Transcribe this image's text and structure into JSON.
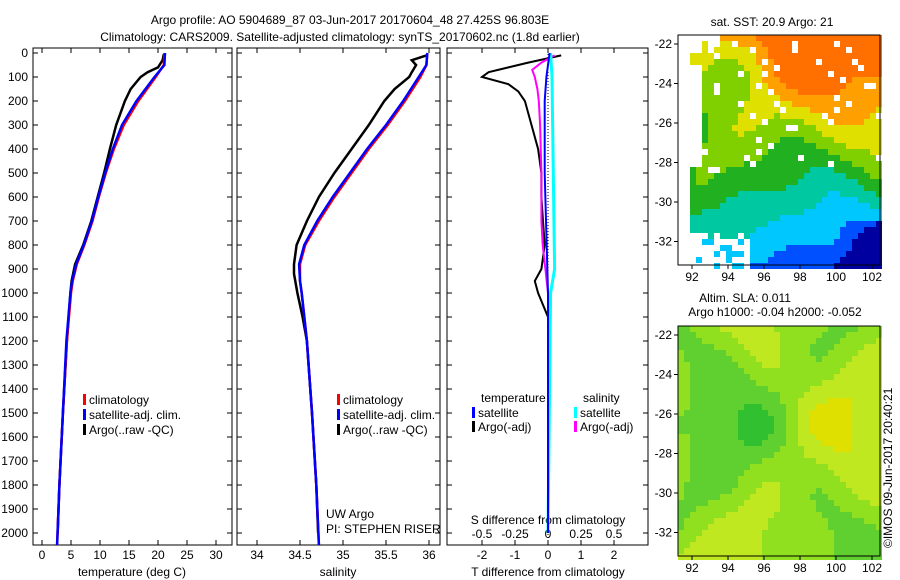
{
  "title_line1": "Argo profile: AO 5904689_87 03-Jun-2017 20170604_48 27.425S 96.803E",
  "title_line2": "Climatology: CARS2009. Satellite-adjusted climatology: synTS_20170602.nc (1.8d earlier)",
  "credit": "©IMOS 09-Jun-2017 20:40:21",
  "colors": {
    "climatology": "#ff0000",
    "satellite": "#0000ff",
    "argo": "#000000",
    "sal_satellite": "#00ffff",
    "sal_argo": "#ff00ff"
  },
  "chart_data": [
    {
      "type": "line",
      "name": "temperature-profile",
      "xlabel": "temperature (deg C)",
      "xlim": [
        -2,
        32
      ],
      "xticks": [
        "0",
        "5",
        "10",
        "15",
        "20",
        "25",
        "30"
      ],
      "ylim": [
        0,
        2050
      ],
      "yticks": [
        "0",
        "100",
        "200",
        "300",
        "400",
        "500",
        "600",
        "700",
        "800",
        "900",
        "1000",
        "1100",
        "1200",
        "1300",
        "1400",
        "1500",
        "1600",
        "1700",
        "1800",
        "1900",
        "2000"
      ],
      "legend": [
        "climatology",
        "satellite-adj. clim.",
        "Argo(..raw -QC)"
      ],
      "series": [
        {
          "name": "climatology",
          "depth": [
            0,
            50,
            100,
            200,
            300,
            400,
            500,
            600,
            700,
            800,
            880,
            950,
            1000,
            1200,
            1500,
            1800,
            2050
          ],
          "values": [
            21.1,
            21,
            19.6,
            16.6,
            14.1,
            12.4,
            11,
            9.8,
            8.7,
            7.3,
            6,
            5.3,
            5,
            4.3,
            3.6,
            3,
            2.6
          ]
        },
        {
          "name": "satellite-adj. clim.",
          "depth": [
            0,
            50,
            100,
            200,
            300,
            400,
            500,
            600,
            700,
            800,
            880,
            950,
            1000,
            1200,
            1500,
            1800,
            2050
          ],
          "values": [
            21.2,
            21.1,
            19.4,
            16.3,
            13.8,
            12.2,
            10.9,
            9.7,
            8.6,
            7.2,
            5.9,
            5.2,
            4.9,
            4.2,
            3.6,
            3,
            2.6
          ]
        },
        {
          "name": "Argo(..raw -QC)",
          "depth": [
            5,
            30,
            60,
            80,
            100,
            150,
            200,
            300,
            400,
            500,
            600,
            700,
            800,
            880,
            950,
            1000,
            1200,
            1500,
            1800,
            2000
          ],
          "values": [
            21,
            20.8,
            20,
            18.2,
            17,
            15.3,
            14.3,
            12.8,
            11.7,
            10.7,
            9.6,
            8.5,
            7.1,
            5.7,
            5.1,
            4.9,
            4.3,
            3.6,
            3,
            2.7
          ]
        }
      ]
    },
    {
      "type": "line",
      "name": "salinity-profile",
      "xlabel": "salinity",
      "xlim": [
        33.8,
        36.1
      ],
      "xticks": [
        "34",
        "34.5",
        "35",
        "35.5",
        "36"
      ],
      "legend": [
        "climatology",
        "satellite-adj. clim.",
        "Argo(..raw -QC)"
      ],
      "annotation": [
        "UW Argo",
        "PI: STEPHEN RISER"
      ],
      "series": [
        {
          "name": "climatology",
          "depth": [
            0,
            50,
            100,
            200,
            300,
            400,
            500,
            600,
            700,
            800,
            880,
            950,
            1000,
            1200,
            1500,
            1800,
            2050
          ],
          "values": [
            35.98,
            35.97,
            35.9,
            35.72,
            35.52,
            35.3,
            35.1,
            34.9,
            34.72,
            34.56,
            34.5,
            34.5,
            34.52,
            34.58,
            34.64,
            34.69,
            34.72
          ]
        },
        {
          "name": "satellite-adj. clim.",
          "depth": [
            0,
            50,
            100,
            200,
            300,
            400,
            500,
            600,
            700,
            800,
            880,
            950,
            1000,
            1200,
            1500,
            1800,
            2050
          ],
          "values": [
            35.98,
            35.97,
            35.88,
            35.7,
            35.5,
            35.28,
            35.08,
            34.88,
            34.7,
            34.55,
            34.49,
            34.5,
            34.52,
            34.58,
            34.64,
            34.69,
            34.72
          ]
        },
        {
          "name": "Argo(..raw -QC)",
          "depth": [
            10,
            30,
            50,
            80,
            100,
            150,
            200,
            300,
            400,
            500,
            600,
            700,
            800,
            880,
            920,
            1000,
            1100,
            1200,
            1500,
            1800,
            2000
          ],
          "values": [
            35.97,
            35.8,
            35.85,
            35.8,
            35.77,
            35.6,
            35.48,
            35.3,
            35.1,
            34.9,
            34.72,
            34.58,
            34.46,
            34.43,
            34.43,
            34.47,
            34.53,
            34.58,
            34.64,
            34.69,
            34.71
          ]
        }
      ]
    },
    {
      "type": "line",
      "name": "difference-profile",
      "xlabel": "T difference from climatology",
      "xlim": [
        -3,
        3
      ],
      "xticks": [
        "-2",
        "-1",
        "0",
        "1",
        "2"
      ],
      "x2label": "S difference from climatology",
      "x2ticks": [
        "-0.5",
        "-0.25",
        "0",
        "0.25",
        "0.5"
      ],
      "legend_headers": [
        "temperature",
        "salinity"
      ],
      "legend": [
        "satellite",
        "Argo(-adj)",
        "satellite",
        "Argo(-adj)"
      ],
      "series": [
        {
          "name": "T satellite",
          "depth": [
            0,
            100,
            200,
            500,
            1000,
            2000
          ],
          "values": [
            0.05,
            -0.05,
            -0.1,
            -0.1,
            0,
            0
          ]
        },
        {
          "name": "T Argo(-adj)",
          "depth": [
            10,
            40,
            60,
            80,
            100,
            130,
            160,
            200,
            300,
            400,
            500,
            600,
            700,
            800,
            900,
            950,
            1000,
            1100,
            1500,
            2000
          ],
          "values": [
            0.4,
            -0.6,
            -1.2,
            -1.8,
            -2.0,
            -1.2,
            -0.9,
            -0.7,
            -0.5,
            -0.3,
            -0.2,
            -0.2,
            -0.15,
            -0.1,
            -0.2,
            -0.4,
            -0.3,
            0,
            0,
            0
          ]
        },
        {
          "name": "S satellite",
          "depth": [
            0,
            100,
            500,
            900,
            1000,
            2000
          ],
          "values": [
            0.02,
            0.03,
            0.04,
            0.05,
            0.02,
            0
          ]
        },
        {
          "name": "S Argo(-adj)",
          "depth": [
            10,
            40,
            70,
            100,
            150,
            200,
            300,
            500,
            700,
            800,
            900,
            1000,
            1100,
            2000
          ],
          "values": [
            0.05,
            -0.05,
            -0.12,
            -0.1,
            -0.08,
            -0.07,
            -0.06,
            -0.05,
            -0.05,
            -0.04,
            -0.02,
            0,
            0,
            0
          ]
        }
      ]
    },
    {
      "type": "heatmap",
      "name": "sst-map",
      "title": "sat. SST: 20.9 Argo: 21",
      "xticks": [
        "92",
        "94",
        "96",
        "98",
        "100",
        "102"
      ],
      "yticks": [
        "-22",
        "-24",
        "-26",
        "-28",
        "-30",
        "-32"
      ]
    },
    {
      "type": "heatmap",
      "name": "sla-map",
      "title_line1": "Altim. SLA: 0.011",
      "title_line2": "Argo h1000: -0.04 h2000: -0.052",
      "xticks": [
        "92",
        "94",
        "96",
        "98",
        "100",
        "102"
      ],
      "yticks": [
        "-22",
        "-24",
        "-26",
        "-28",
        "-30",
        "-32"
      ]
    }
  ]
}
